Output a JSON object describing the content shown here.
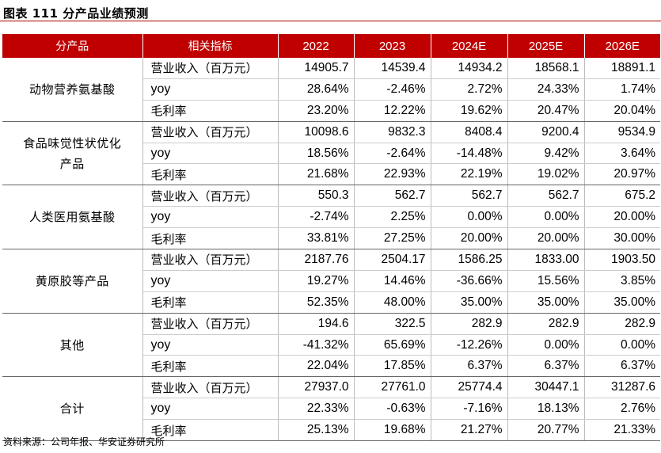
{
  "title": "图表 111 分产品业绩预测",
  "header": [
    "分产品",
    "相关指标",
    "2022",
    "2023",
    "2024E",
    "2025E",
    "2026E"
  ],
  "groups": [
    {
      "product_lines": [
        "动物营养氨基酸"
      ],
      "rows": [
        {
          "metric": "营业收入（百万元）",
          "values": [
            "14905.7",
            "14539.4",
            "14934.2",
            "18568.1",
            "18891.1"
          ]
        },
        {
          "metric": "yoy",
          "values": [
            "28.64%",
            "-2.46%",
            "2.72%",
            "24.33%",
            "1.74%"
          ]
        },
        {
          "metric": "毛利率",
          "values": [
            "23.20%",
            "12.22%",
            "19.62%",
            "20.47%",
            "20.04%"
          ]
        }
      ]
    },
    {
      "product_lines": [
        "食品味觉性状优化",
        "产品"
      ],
      "rows": [
        {
          "metric": "营业收入（百万元）",
          "values": [
            "10098.6",
            "9832.3",
            "8408.4",
            "9200.4",
            "9534.9"
          ]
        },
        {
          "metric": "yoy",
          "values": [
            "18.56%",
            "-2.64%",
            "-14.48%",
            "9.42%",
            "3.64%"
          ]
        },
        {
          "metric": "毛利率",
          "values": [
            "21.68%",
            "22.93%",
            "22.19%",
            "19.02%",
            "20.97%"
          ]
        }
      ]
    },
    {
      "product_lines": [
        "人类医用氨基酸"
      ],
      "rows": [
        {
          "metric": "营业收入（百万元）",
          "values": [
            "550.3",
            "562.7",
            "562.7",
            "562.7",
            "675.2"
          ]
        },
        {
          "metric": "yoy",
          "values": [
            "-2.74%",
            "2.25%",
            "0.00%",
            "0.00%",
            "20.00%"
          ]
        },
        {
          "metric": "毛利率",
          "values": [
            "33.81%",
            "27.25%",
            "20.00%",
            "20.00%",
            "30.00%"
          ]
        }
      ]
    },
    {
      "product_lines": [
        "黄原胶等产品"
      ],
      "rows": [
        {
          "metric": "营业收入（百万元）",
          "values": [
            "2187.76",
            "2504.17",
            "1586.25",
            "1833.00",
            "1903.50"
          ]
        },
        {
          "metric": "yoy",
          "values": [
            "19.27%",
            "14.46%",
            "-36.66%",
            "15.56%",
            "3.85%"
          ]
        },
        {
          "metric": "毛利率",
          "values": [
            "52.35%",
            "48.00%",
            "35.00%",
            "35.00%",
            "35.00%"
          ]
        }
      ]
    },
    {
      "product_lines": [
        "其他"
      ],
      "rows": [
        {
          "metric": "营业收入（百万元）",
          "values": [
            "194.6",
            "322.5",
            "282.9",
            "282.9",
            "282.9"
          ]
        },
        {
          "metric": "yoy",
          "values": [
            "-41.32%",
            "65.69%",
            "-12.26%",
            "0.00%",
            "0.00%"
          ]
        },
        {
          "metric": "毛利率",
          "values": [
            "22.04%",
            "17.85%",
            "6.37%",
            "6.37%",
            "6.37%"
          ]
        }
      ]
    },
    {
      "product_lines": [
        "合计"
      ],
      "rows": [
        {
          "metric": "营业收入（百万元）",
          "values": [
            "27937.0",
            "27761.0",
            "25774.4",
            "30447.1",
            "31287.6"
          ]
        },
        {
          "metric": "yoy",
          "values": [
            "22.33%",
            "-0.63%",
            "-7.16%",
            "18.13%",
            "2.76%"
          ]
        },
        {
          "metric": "毛利率",
          "values": [
            "25.13%",
            "19.68%",
            "21.27%",
            "20.77%",
            "21.33%"
          ]
        }
      ]
    }
  ],
  "source": "资料来源：公司年报、华安证券研究所",
  "colors": {
    "header_bg": "#c00000",
    "header_text": "#ffffff",
    "rule": "#b00000"
  }
}
